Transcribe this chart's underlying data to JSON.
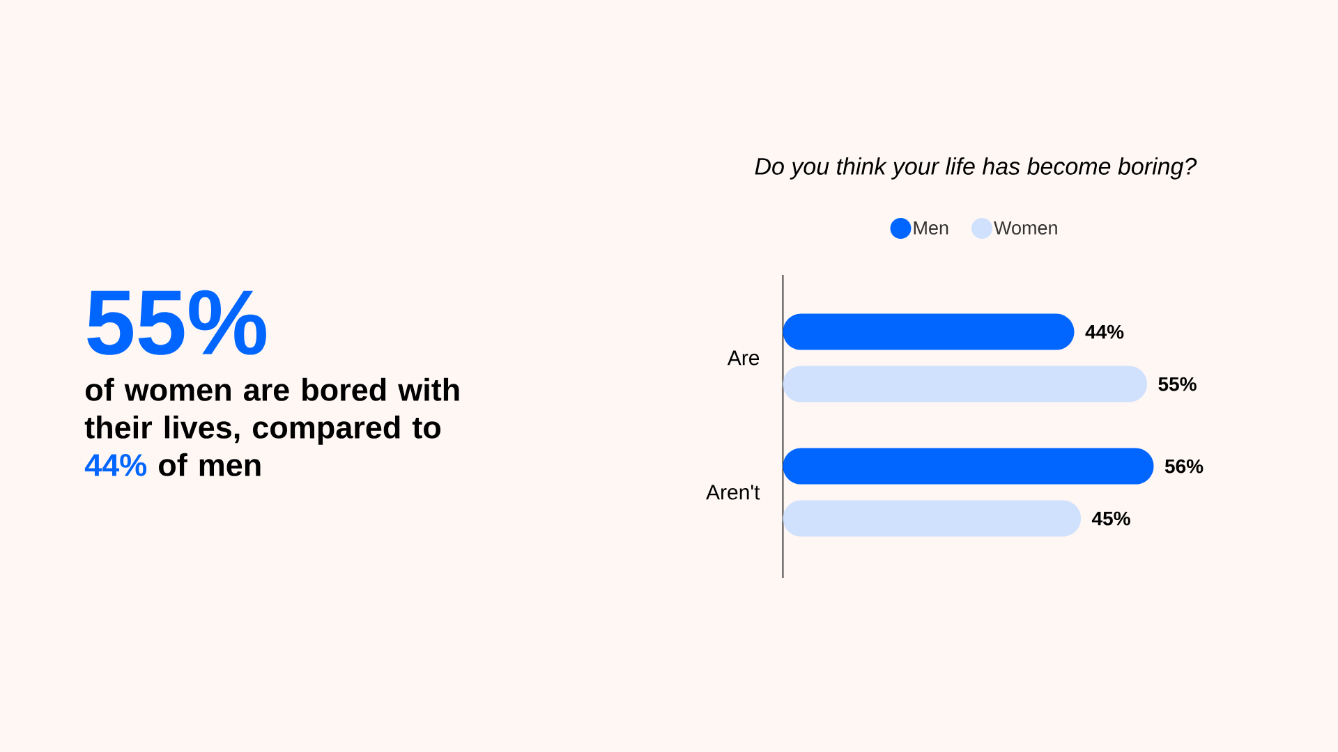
{
  "chart_data": {
    "type": "bar",
    "orientation": "horizontal",
    "title": "Do you think your life has become boring?",
    "categories": [
      "Are",
      "Aren't"
    ],
    "series": [
      {
        "name": "Men",
        "color": "#0066ff",
        "values": [
          44,
          56
        ],
        "value_labels": [
          "44%",
          "56%"
        ]
      },
      {
        "name": "Women",
        "color": "#cfe1fd",
        "values": [
          55,
          45
        ],
        "value_labels": [
          "55%",
          "45%"
        ]
      }
    ],
    "legend": "top",
    "annotations": [
      "55%",
      "of women are bored with their lives, compared to",
      "44%",
      "of men"
    ]
  }
}
